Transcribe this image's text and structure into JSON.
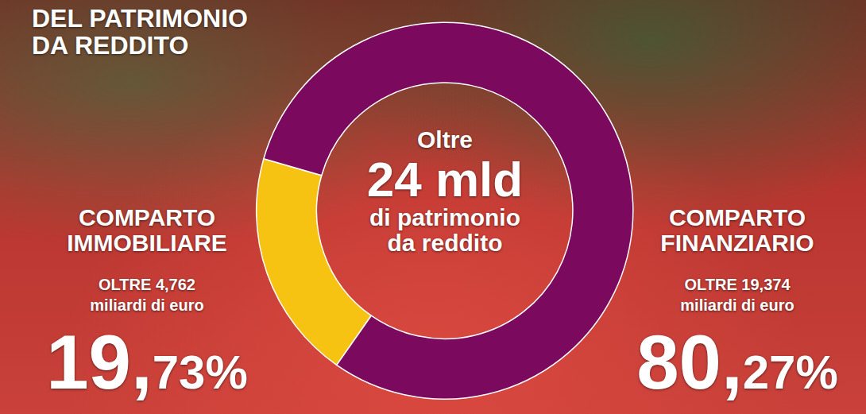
{
  "chart_data": {
    "type": "pie",
    "title": [
      "DEL PATRIMONIO",
      "DA REDDITO"
    ],
    "center_text": [
      "Oltre",
      "24 mld",
      "di patrimonio",
      "da reddito"
    ],
    "categories": [
      "COMPARTO IMMOBILIARE",
      "COMPARTO FINANZIARIO"
    ],
    "values": [
      19.73,
      80.27
    ],
    "value_labels": [
      "19,73%",
      "80,27%"
    ],
    "amount_labels": [
      [
        "OLTRE 4,762",
        "miliardi di euro"
      ],
      [
        "OLTRE 19,374",
        "miliardi di euro"
      ]
    ],
    "colors": [
      "#f7c312",
      "#7b0a5e"
    ],
    "data_labels": true
  }
}
